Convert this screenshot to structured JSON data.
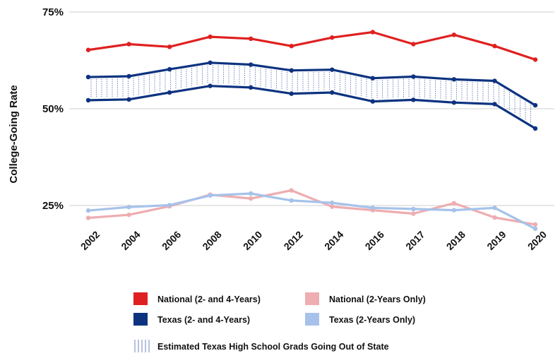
{
  "chart_data": {
    "type": "line",
    "title": "",
    "xlabel": "",
    "ylabel": "College-Going Rate",
    "categories": [
      "2002",
      "2004",
      "2006",
      "2008",
      "2010",
      "2012",
      "2014",
      "2016",
      "2017",
      "2018",
      "2019",
      "2020"
    ],
    "yticks": [
      {
        "value": 75,
        "label": "75%"
      },
      {
        "value": 50,
        "label": "50%"
      },
      {
        "value": 25,
        "label": "25%"
      }
    ],
    "ylim": [
      17,
      77
    ],
    "grid": true,
    "legend_position": "bottom",
    "series": [
      {
        "key": "nat24",
        "name": "National (2- and 4-Years)",
        "color": "#e02020",
        "values": [
          65.2,
          66.7,
          66.0,
          68.6,
          68.1,
          66.2,
          68.4,
          69.8,
          66.7,
          69.1,
          66.2,
          62.7
        ]
      },
      {
        "key": "tx24_hi",
        "name": "Texas (2- and 4-Years)",
        "color": "#0d3380",
        "values": [
          58.2,
          58.4,
          60.2,
          61.9,
          61.4,
          59.9,
          60.1,
          57.9,
          58.3,
          57.6,
          57.2,
          50.9
        ]
      },
      {
        "key": "tx24_lo",
        "name": "",
        "color": "#0d3380",
        "values": [
          52.2,
          52.4,
          54.2,
          55.9,
          55.5,
          53.9,
          54.2,
          51.9,
          52.3,
          51.6,
          51.2,
          44.9
        ]
      },
      {
        "key": "nat2",
        "name": "National (2-Years Only)",
        "color": "#eeadb0",
        "values": [
          21.8,
          22.6,
          24.8,
          27.8,
          26.8,
          28.9,
          24.7,
          23.8,
          22.9,
          25.6,
          21.9,
          20.1
        ]
      },
      {
        "key": "tx2",
        "name": "Texas (2-Years Only)",
        "color": "#a6c2ea",
        "values": [
          23.7,
          24.6,
          25.1,
          27.6,
          28.1,
          26.3,
          25.7,
          24.4,
          24.1,
          23.8,
          24.4,
          19.0
        ]
      }
    ],
    "shaded_band": {
      "name": "Estimated Texas High School Grads Going Out of State",
      "between": [
        "tx24_hi",
        "tx24_lo"
      ],
      "color": "#6f86bf"
    },
    "legend": [
      {
        "label": "National (2- and 4-Years)",
        "color": "#e02020"
      },
      {
        "label": "National (2-Years Only)",
        "color": "#eeadb0"
      },
      {
        "label": "Texas (2- and 4-Years)",
        "color": "#0d3380"
      },
      {
        "label": "Texas (2-Years Only)",
        "color": "#a6c2ea"
      },
      {
        "label": "Estimated Texas High School Grads Going Out of State",
        "color": "#6f86bf",
        "style": "hatch"
      }
    ]
  }
}
